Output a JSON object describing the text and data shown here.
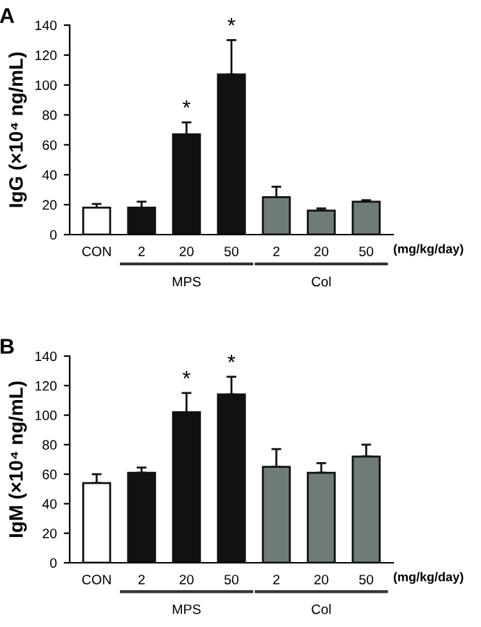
{
  "chart_data": [
    {
      "type": "bar",
      "title": "A",
      "ylabel": "IgG (×10⁴ ng/mL)",
      "xlabel": "(mg/kg/day)",
      "categories": [
        "CON",
        "2",
        "20",
        "50",
        "2",
        "20",
        "50"
      ],
      "values": [
        18,
        18,
        67,
        107,
        25,
        16,
        22
      ],
      "colors": [
        "#ffffff",
        "#111111",
        "#111111",
        "#111111",
        "#6e7b78",
        "#6e7b78",
        "#6e7b78"
      ],
      "errors": [
        [
          18,
          20.5
        ],
        [
          18,
          22
        ],
        [
          67,
          75
        ],
        [
          107,
          130
        ],
        [
          25,
          32
        ],
        [
          16,
          17.5
        ],
        [
          22,
          23
        ]
      ],
      "ylim": [
        0,
        140
      ],
      "yticks": [
        0,
        20,
        40,
        60,
        80,
        100,
        120,
        140
      ],
      "annotations": [
        {
          "text": "*",
          "x": "20",
          "y": 75
        },
        {
          "text": "*",
          "x": "50",
          "y": 130
        },
        "MPS",
        "Col"
      ]
    },
    {
      "type": "bar",
      "title": "B",
      "ylabel": "IgM (×10⁴ ng/mL)",
      "xlabel": "(mg/kg/day)",
      "categories": [
        "CON",
        "2",
        "20",
        "50",
        "2",
        "20",
        "50"
      ],
      "values": [
        54,
        61,
        102,
        114,
        65,
        61,
        72
      ],
      "colors": [
        "#ffffff",
        "#111111",
        "#111111",
        "#111111",
        "#6e7b78",
        "#6e7b78",
        "#6e7b78"
      ],
      "errors": [
        [
          54,
          60
        ],
        [
          61,
          64.5
        ],
        [
          102,
          115
        ],
        [
          114,
          126
        ],
        [
          65,
          77
        ],
        [
          61,
          67.5
        ],
        [
          72,
          80
        ]
      ],
      "ylim": [
        0,
        140
      ],
      "yticks": [
        0,
        20,
        40,
        60,
        80,
        100,
        120,
        140
      ],
      "annotations": [
        {
          "text": "*",
          "x": "20",
          "y": 115
        },
        {
          "text": "*",
          "x": "50",
          "y": 126
        },
        "MPS",
        "Col"
      ]
    }
  ]
}
